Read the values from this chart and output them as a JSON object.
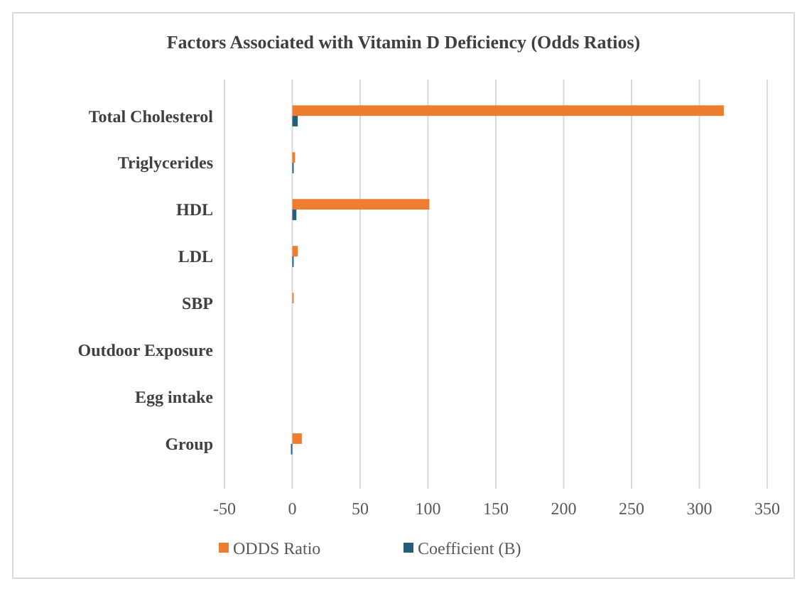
{
  "chart_data": {
    "type": "bar",
    "orientation": "horizontal",
    "title": "Factors Associated with Vitamin D Deficiency (Odds Ratios)",
    "categories": [
      "Total Cholesterol",
      "Triglycerides",
      "HDL",
      "LDL",
      "SBP",
      "Outdoor Exposure",
      "Egg intake",
      "Group"
    ],
    "series": [
      {
        "name": "ODDS Ratio",
        "color": "#ed7d31",
        "values": [
          318,
          2,
          101,
          4,
          1,
          null,
          null,
          7
        ]
      },
      {
        "name": "Coefficient (B)",
        "color": "#255e78",
        "values": [
          4,
          1,
          3,
          1,
          null,
          null,
          null,
          -1
        ]
      }
    ],
    "xlim": [
      -50,
      350
    ],
    "xticks": [
      -50,
      0,
      50,
      100,
      150,
      200,
      250,
      300,
      350
    ],
    "grid": "x",
    "legend": "bottom"
  }
}
